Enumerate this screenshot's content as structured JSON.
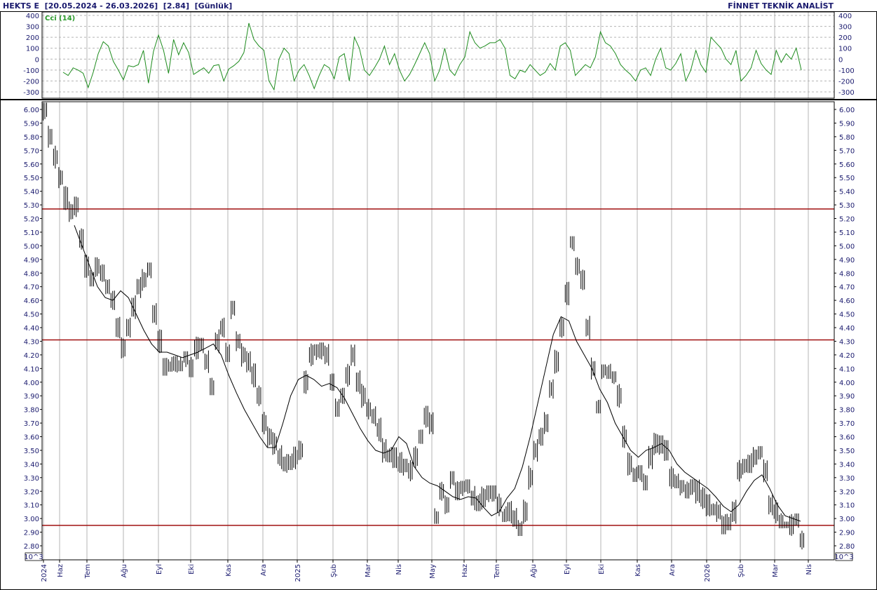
{
  "header": {
    "left": "HEKTS E  [20.05.2024 - 26.03.2026]  [2.84]  [Günlük]",
    "right": "FİNNET TEKNİK ANALİST"
  },
  "indicator": {
    "name": "Cci (14)",
    "y_ticks": [
      "400",
      "300",
      "200",
      "100",
      "0",
      "-100",
      "-200",
      "-300"
    ]
  },
  "scale_note": "10^3",
  "colors": {
    "frame": "#000000",
    "grid": "#b4b4b4",
    "price": "#000000",
    "cci": "#1e8c1e",
    "hline": "#a01010",
    "text": "#1a1a6e"
  },
  "chart_data": [
    {
      "type": "line",
      "title": "Cci (14)",
      "ylim": [
        -300,
        400
      ],
      "grid": true,
      "series": [
        {
          "name": "Cci (14)",
          "values": [
            -120,
            -150,
            -80,
            -100,
            -130,
            -260,
            -120,
            50,
            160,
            120,
            -20,
            -100,
            -190,
            -60,
            -70,
            -50,
            80,
            -220,
            70,
            220,
            80,
            -130,
            180,
            40,
            150,
            60,
            -140,
            -110,
            -80,
            -130,
            -60,
            -50,
            -200,
            -90,
            -60,
            -20,
            60,
            330,
            180,
            120,
            80,
            -200,
            -280,
            0,
            100,
            50,
            -200,
            -100,
            -50,
            -150,
            -270,
            -150,
            -50,
            -80,
            -180,
            20,
            50,
            -200,
            200,
            100,
            -100,
            -150,
            -80,
            0,
            120,
            -50,
            50,
            -100,
            -200,
            -140,
            -50,
            50,
            150,
            50,
            -200,
            -100,
            100,
            -100,
            -150,
            -50,
            20,
            250,
            150,
            100,
            120,
            150,
            150,
            180,
            100,
            -150,
            -180,
            -100,
            -120,
            -50,
            -100,
            -150,
            -120,
            -40,
            -100,
            120,
            150,
            80,
            -150,
            -100,
            -50,
            -80,
            20,
            250,
            150,
            120,
            50,
            -50,
            -100,
            -140,
            -200,
            -100,
            -80,
            -150,
            0,
            100,
            -80,
            -100,
            -40,
            50,
            -200,
            -100,
            80,
            -50,
            -120,
            200,
            150,
            100,
            0,
            -50,
            80,
            -200,
            -150,
            -80,
            80,
            -40,
            -100,
            -140,
            80,
            -30,
            50,
            0,
            100,
            -100
          ],
          "x_range": [
            "2024-05-20",
            "2026-03-26"
          ]
        }
      ]
    },
    {
      "type": "line",
      "title": "HEKTS E",
      "ylim": [
        2.75,
        6.05
      ],
      "grid": true,
      "y_ticks": [
        "6.00",
        "5.90",
        "5.80",
        "5.70",
        "5.60",
        "5.50",
        "5.40",
        "5.30",
        "5.20",
        "5.10",
        "5.00",
        "4.90",
        "4.80",
        "4.70",
        "4.60",
        "4.50",
        "4.40",
        "4.30",
        "4.20",
        "4.10",
        "4.00",
        "3.90",
        "3.80",
        "3.70",
        "3.60",
        "3.50",
        "3.40",
        "3.30",
        "3.20",
        "3.10",
        "3.00",
        "2.90",
        "2.80"
      ],
      "x_ticks": [
        "2024",
        "Haz",
        "Tem",
        "Ağu",
        "Eyl",
        "Eki",
        "Kas",
        "Ara",
        "2025",
        "Şub",
        "Mar",
        "Nis",
        "May",
        "Haz",
        "Tem",
        "Ağu",
        "Eyl",
        "Eki",
        "Kas",
        "Ara",
        "2026",
        "Şub",
        "Mar",
        "Nis"
      ],
      "horizontal_lines": [
        5.27,
        4.31,
        2.95
      ],
      "last_value": 2.84,
      "series": [
        {
          "name": "HEKTS E",
          "style": "price-bars",
          "close": [
            6.0,
            5.8,
            5.65,
            5.5,
            5.35,
            5.25,
            5.3,
            5.05,
            4.85,
            4.75,
            4.85,
            4.8,
            4.7,
            4.6,
            4.4,
            4.25,
            4.4,
            4.55,
            4.7,
            4.75,
            4.85,
            4.5,
            4.3,
            4.1,
            4.1,
            4.15,
            4.1,
            4.2,
            4.1,
            4.25,
            4.3,
            4.15,
            3.95,
            4.3,
            4.4,
            4.2,
            4.55,
            4.3,
            4.2,
            4.15,
            4.05,
            3.9,
            3.7,
            3.6,
            3.55,
            3.45,
            3.4,
            3.4,
            3.45,
            3.5,
            4.0,
            4.2,
            4.25,
            4.25,
            4.2,
            4.0,
            3.8,
            3.9,
            4.05,
            4.2,
            4.0,
            3.9,
            3.8,
            3.75,
            3.65,
            3.5,
            3.45,
            3.45,
            3.4,
            3.4,
            3.35,
            3.45,
            3.6,
            3.75,
            3.7,
            3.0,
            3.2,
            3.1,
            3.3,
            3.2,
            3.25,
            3.25,
            3.15,
            3.1,
            3.15,
            3.2,
            3.2,
            3.1,
            3.0,
            3.05,
            3.0,
            2.9,
            3.05,
            3.3,
            3.5,
            3.6,
            3.7,
            3.95,
            4.15,
            4.4,
            4.65,
            5.05,
            4.85,
            4.75,
            4.4,
            4.1,
            3.8,
            4.1,
            4.05,
            4.05,
            3.9,
            3.6,
            3.4,
            3.3,
            3.35,
            3.25,
            3.45,
            3.55,
            3.55,
            3.5,
            3.3,
            3.25,
            3.25,
            3.2,
            3.25,
            3.2,
            3.15,
            3.1,
            3.05,
            3.05,
            2.95,
            2.95,
            3.05,
            3.35,
            3.4,
            3.4,
            3.45,
            3.5,
            3.35,
            3.1,
            3.05,
            2.95,
            2.95,
            2.95,
            3.0,
            2.84
          ]
        },
        {
          "name": "Moving average",
          "style": "line",
          "values": [
            5.15,
            5.0,
            4.85,
            4.7,
            4.62,
            4.6,
            4.67,
            4.62,
            4.5,
            4.38,
            4.28,
            4.22,
            4.22,
            4.2,
            4.18,
            4.2,
            4.22,
            4.25,
            4.28,
            4.2,
            4.05,
            3.92,
            3.8,
            3.7,
            3.6,
            3.52,
            3.52,
            3.7,
            3.9,
            4.02,
            4.05,
            4.02,
            3.97,
            3.99,
            3.96,
            3.88,
            3.77,
            3.66,
            3.57,
            3.5,
            3.48,
            3.5,
            3.6,
            3.55,
            3.38,
            3.3,
            3.26,
            3.24,
            3.2,
            3.16,
            3.14,
            3.16,
            3.15,
            3.08,
            3.02,
            3.05,
            3.15,
            3.22,
            3.38,
            3.6,
            3.85,
            4.1,
            4.35,
            4.48,
            4.45,
            4.3,
            4.2,
            4.1,
            3.95,
            3.85,
            3.7,
            3.6,
            3.5,
            3.45,
            3.5,
            3.52,
            3.55,
            3.5,
            3.4,
            3.34,
            3.3,
            3.26,
            3.22,
            3.16,
            3.09,
            3.05,
            3.1,
            3.2,
            3.28,
            3.32,
            3.22,
            3.1,
            3.02,
            3.0,
            2.98
          ]
        }
      ]
    }
  ]
}
